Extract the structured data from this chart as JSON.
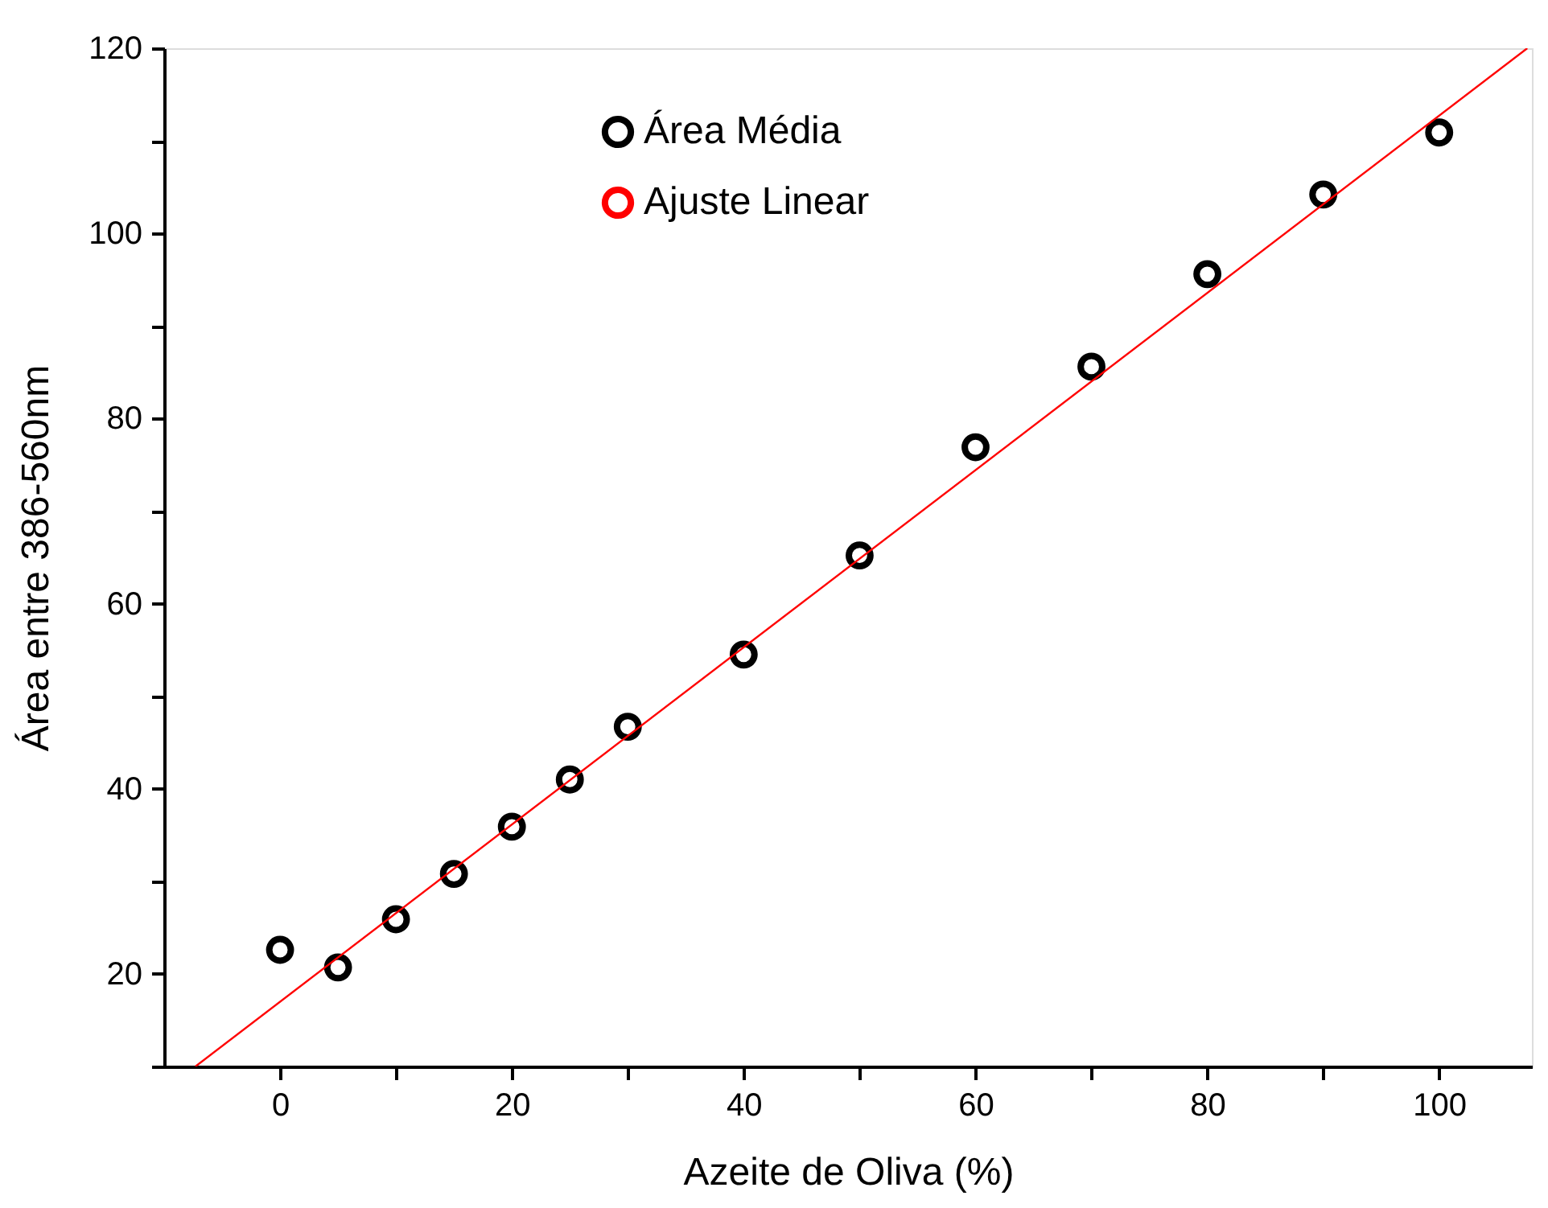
{
  "chart_data": {
    "type": "scatter",
    "xlabel": "Azeite de Oliva (%)",
    "ylabel": "Área entre 386-560nm",
    "xlim": [
      -10,
      108
    ],
    "ylim": [
      10,
      120
    ],
    "xticks": [
      0,
      {
        "value": 10,
        "label": null
      },
      20,
      {
        "value": 30,
        "label": null
      },
      40,
      {
        "value": 50,
        "label": null
      },
      60,
      {
        "value": 70,
        "label": null
      },
      80,
      {
        "value": 90,
        "label": null
      },
      100
    ],
    "yticks": [
      {
        "value": 10,
        "label": null
      },
      20,
      {
        "value": 30,
        "label": null
      },
      40,
      {
        "value": 50,
        "label": null
      },
      60,
      {
        "value": 70,
        "label": null
      },
      80,
      {
        "value": 90,
        "label": null
      },
      100,
      {
        "value": 110,
        "label": null
      },
      120
    ],
    "grid": false,
    "legend": "top",
    "series": [
      {
        "name": "Área Média",
        "marker": "circle",
        "color": "#000000",
        "x": [
          0,
          5,
          10,
          15,
          20,
          25,
          30,
          40,
          50,
          60,
          70,
          80,
          90,
          100
        ],
        "values": [
          22.6,
          20.7,
          25.9,
          30.8,
          35.9,
          41.0,
          46.7,
          54.5,
          65.2,
          76.9,
          85.6,
          95.6,
          104.2,
          110.9
        ]
      },
      {
        "name": "Ajuste Linear",
        "type": "line",
        "color": "#ff0000",
        "line_style": "solid",
        "x": [
          -7.3,
          107.6
        ],
        "values": [
          10,
          120
        ]
      }
    ]
  }
}
